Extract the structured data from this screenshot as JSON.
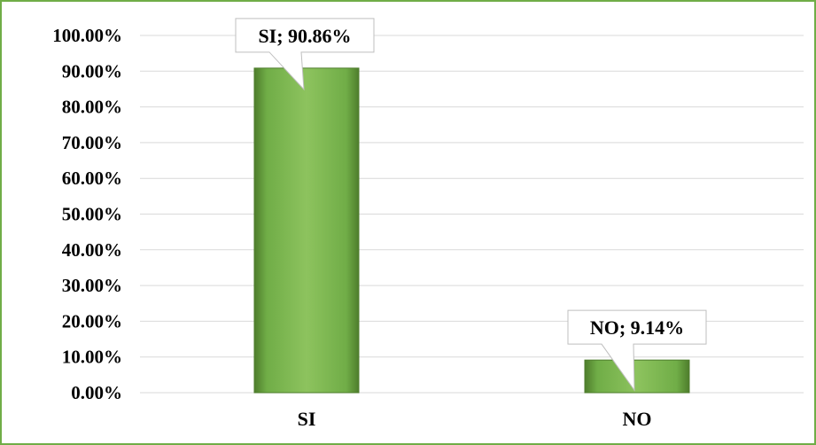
{
  "chart_data": {
    "type": "bar",
    "categories": [
      "SI",
      "NO"
    ],
    "values": [
      90.86,
      9.14
    ],
    "data_labels": [
      "SI; 90.86%",
      "NO; 9.14%"
    ],
    "y_ticks": [
      "0.00%",
      "10.00%",
      "20.00%",
      "30.00%",
      "40.00%",
      "50.00%",
      "60.00%",
      "70.00%",
      "80.00%",
      "90.00%",
      "100.00%"
    ],
    "ylim": [
      0,
      100
    ],
    "title": "",
    "xlabel": "",
    "ylabel": "",
    "grid": true,
    "legend": "none",
    "colors": {
      "bar": "#70ad47",
      "bar_dark": "#4e7d2c",
      "bar_light": "#8dc35e",
      "gridline": "#d9d9d9",
      "frame": "#70ad47"
    }
  }
}
